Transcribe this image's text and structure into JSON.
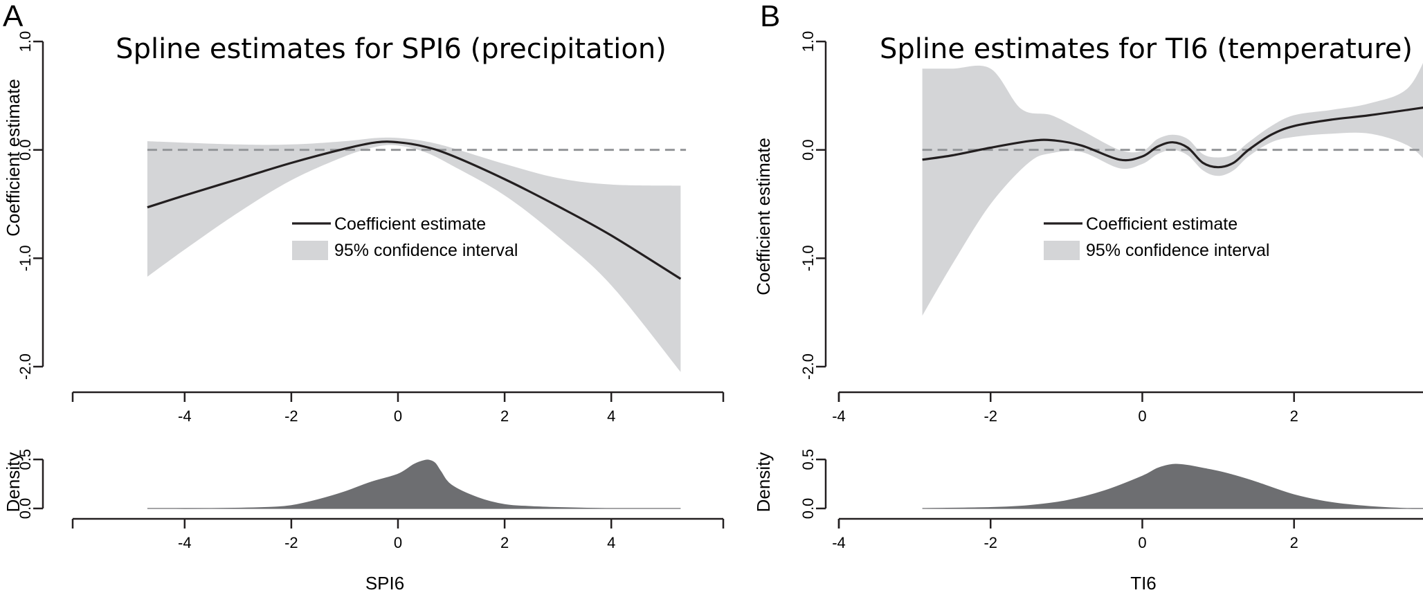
{
  "colors": {
    "ci_band": "#d4d5d7",
    "line": "#231f20",
    "zero_line": "#939598",
    "density_fill": "#6d6e71"
  },
  "chart_data": [
    {
      "panel": "A",
      "type": "line",
      "title": "Spline estimates for SPI6 (precipitation)",
      "ylabel": "Coefficient estimate",
      "xlabel": "",
      "xlim": [
        -6.1,
        6.1
      ],
      "ylim": [
        -2.0,
        1.0
      ],
      "yticks": [
        "1.0",
        "0.0",
        "-1.0",
        "-2.0"
      ],
      "xticks": [
        "-4",
        "-2",
        "0",
        "2",
        "4"
      ],
      "legend": {
        "line": "Coefficient estimate",
        "band": "95% confidence interval",
        "placement": "center"
      },
      "reference_line": 0,
      "series": [
        {
          "role": "estimate",
          "x": [
            -4.7,
            -4.0,
            -3.0,
            -2.0,
            -1.0,
            -0.4,
            0.0,
            0.5,
            1.0,
            2.0,
            3.0,
            4.0,
            5.3
          ],
          "y": [
            -0.53,
            -0.42,
            -0.27,
            -0.12,
            0.01,
            0.07,
            0.07,
            0.03,
            -0.05,
            -0.27,
            -0.52,
            -0.79,
            -1.19
          ]
        },
        {
          "role": "ci_upper",
          "x": [
            -4.7,
            -3.0,
            -2.0,
            -1.0,
            -0.4,
            0.0,
            0.5,
            1.0,
            2.0,
            3.0,
            4.0,
            5.3
          ],
          "y": [
            0.08,
            0.05,
            0.05,
            0.08,
            0.11,
            0.11,
            0.08,
            0.02,
            -0.13,
            -0.26,
            -0.32,
            -0.33
          ]
        },
        {
          "role": "ci_lower",
          "x": [
            -4.7,
            -4.0,
            -3.0,
            -2.0,
            -1.0,
            -0.4,
            0.0,
            0.5,
            1.0,
            2.0,
            3.0,
            4.0,
            5.3
          ],
          "y": [
            -1.17,
            -0.92,
            -0.58,
            -0.28,
            -0.06,
            0.03,
            0.04,
            -0.02,
            -0.14,
            -0.42,
            -0.8,
            -1.25,
            -2.05
          ]
        }
      ]
    },
    {
      "panel": "A",
      "type": "area",
      "title": "",
      "ylabel": "Density",
      "xlabel": "SPI6",
      "xlim": [
        -6.1,
        6.1
      ],
      "ylim": [
        0,
        0.6
      ],
      "yticks": [
        "0.5",
        "0.0"
      ],
      "xticks": [
        "-4",
        "-2",
        "0",
        "2",
        "4"
      ],
      "series": [
        {
          "role": "density",
          "x": [
            -4.7,
            -3.5,
            -2.5,
            -2.0,
            -1.5,
            -1.0,
            -0.5,
            0.0,
            0.3,
            0.5,
            0.6,
            0.7,
            0.8,
            1.0,
            1.5,
            2.0,
            2.5,
            3.0,
            4.0,
            5.3
          ],
          "y": [
            0.0,
            0.0,
            0.01,
            0.03,
            0.09,
            0.17,
            0.27,
            0.35,
            0.45,
            0.49,
            0.49,
            0.46,
            0.38,
            0.24,
            0.11,
            0.04,
            0.02,
            0.01,
            0.0,
            0.0
          ]
        }
      ]
    },
    {
      "panel": "B",
      "type": "line",
      "title": "Spline estimates for TI6 (temperature)",
      "ylabel": "Coefficient estimate",
      "xlabel": "",
      "xlim": [
        -4.0,
        3.8
      ],
      "ylim": [
        -2.0,
        1.0
      ],
      "yticks": [
        "1.0",
        "0.0",
        "-1.0",
        "-2.0"
      ],
      "xticks": [
        "-4",
        "-2",
        "0",
        "2"
      ],
      "legend": {
        "line": "Coefficient estimate",
        "band": "95% confidence interval",
        "placement": "center"
      },
      "reference_line": 0,
      "series": [
        {
          "role": "estimate",
          "x": [
            -2.9,
            -2.5,
            -2.0,
            -1.5,
            -1.2,
            -0.8,
            -0.3,
            0.0,
            0.2,
            0.4,
            0.6,
            0.8,
            1.0,
            1.2,
            1.4,
            1.7,
            2.0,
            2.5,
            3.0,
            3.8
          ],
          "y": [
            -0.09,
            -0.05,
            0.02,
            0.08,
            0.09,
            0.04,
            -0.09,
            -0.06,
            0.03,
            0.07,
            0.02,
            -0.12,
            -0.16,
            -0.12,
            0.0,
            0.14,
            0.22,
            0.28,
            0.32,
            0.4
          ]
        },
        {
          "role": "ci_upper",
          "x": [
            -2.9,
            -2.5,
            -2.0,
            -1.6,
            -1.2,
            -0.8,
            -0.3,
            0.0,
            0.2,
            0.4,
            0.6,
            0.8,
            1.0,
            1.2,
            1.4,
            1.7,
            2.0,
            2.5,
            3.0,
            3.5,
            3.8
          ],
          "y": [
            0.75,
            0.75,
            0.75,
            0.38,
            0.32,
            0.18,
            0.0,
            -0.01,
            0.1,
            0.14,
            0.1,
            -0.04,
            -0.07,
            -0.04,
            0.07,
            0.22,
            0.32,
            0.37,
            0.43,
            0.57,
            0.96
          ]
        },
        {
          "role": "ci_lower",
          "x": [
            -2.9,
            -2.5,
            -2.0,
            -1.5,
            -1.2,
            -0.8,
            -0.3,
            0.0,
            0.2,
            0.4,
            0.6,
            0.8,
            1.0,
            1.2,
            1.4,
            1.7,
            2.0,
            2.5,
            3.0,
            3.5,
            3.8
          ],
          "y": [
            -1.53,
            -1.05,
            -0.5,
            -0.12,
            -0.03,
            -0.02,
            -0.17,
            -0.13,
            -0.04,
            0.0,
            -0.05,
            -0.19,
            -0.24,
            -0.19,
            -0.06,
            0.07,
            0.12,
            0.15,
            0.15,
            0.04,
            -0.15
          ]
        }
      ]
    },
    {
      "panel": "B",
      "type": "area",
      "title": "",
      "ylabel": "Density",
      "xlabel": "TI6",
      "xlim": [
        -4.0,
        3.8
      ],
      "ylim": [
        0,
        0.6
      ],
      "yticks": [
        "0.5",
        "0.0"
      ],
      "xticks": [
        "-4",
        "-2",
        "0",
        "2"
      ],
      "series": [
        {
          "role": "density",
          "x": [
            -2.9,
            -2.0,
            -1.5,
            -1.0,
            -0.5,
            0.0,
            0.2,
            0.4,
            0.6,
            0.8,
            1.0,
            1.2,
            1.5,
            2.0,
            2.5,
            3.0,
            3.5,
            3.8
          ],
          "y": [
            0.0,
            0.01,
            0.03,
            0.08,
            0.18,
            0.33,
            0.41,
            0.45,
            0.44,
            0.41,
            0.38,
            0.34,
            0.27,
            0.14,
            0.06,
            0.02,
            0.0,
            0.0
          ]
        }
      ]
    }
  ]
}
